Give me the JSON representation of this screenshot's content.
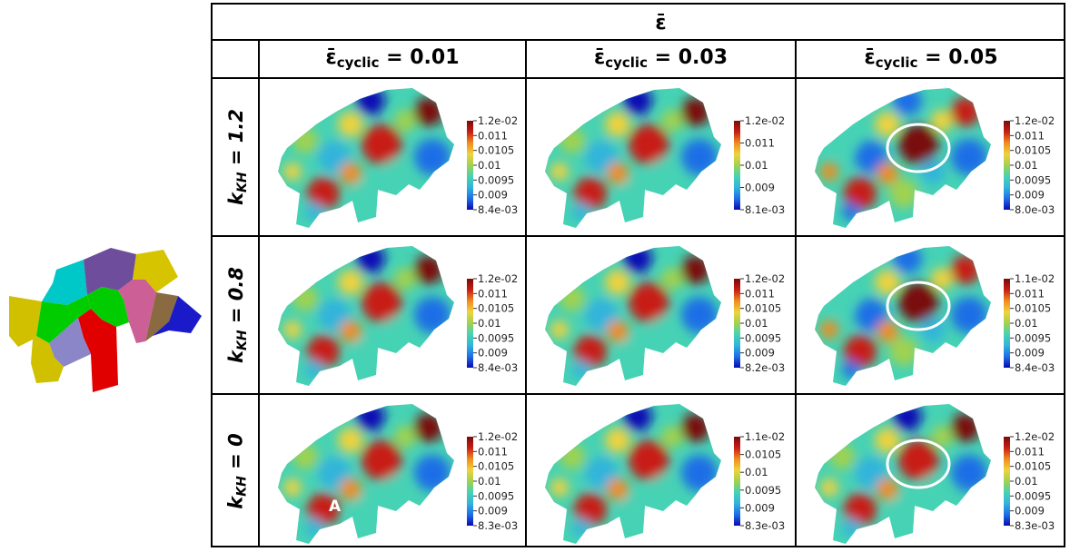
{
  "header": {
    "top_symbol": "ε̄",
    "columns": [
      {
        "prefix": "ε̄",
        "sub": "cyclic",
        "value": " = 0.01"
      },
      {
        "prefix": "ε̄",
        "sub": "cyclic",
        "value": " = 0.03"
      },
      {
        "prefix": "ε̄",
        "sub": "cyclic",
        "value": " = 0.05"
      }
    ],
    "rows": [
      {
        "prefix": "k",
        "sub": "KH",
        "value": " = 1.2"
      },
      {
        "prefix": "k",
        "sub": "KH",
        "value": " = 0.8"
      },
      {
        "prefix": "k",
        "sub": "KH",
        "value": " = 0"
      }
    ]
  },
  "colorbars": [
    [
      {
        "labels": [
          "1.2e-02",
          "0.011",
          "0.0105",
          "0.01",
          "0.0095",
          "0.009",
          "8.4e-03"
        ]
      },
      {
        "labels": [
          "1.2e-02",
          "0.011",
          "0.01",
          "0.009",
          "8.1e-03"
        ]
      },
      {
        "labels": [
          "1.2e-02",
          "0.011",
          "0.0105",
          "0.01",
          "0.0095",
          "0.009",
          "8.0e-03"
        ]
      }
    ],
    [
      {
        "labels": [
          "1.2e-02",
          "0.011",
          "0.0105",
          "0.01",
          "0.0095",
          "0.009",
          "8.4e-03"
        ]
      },
      {
        "labels": [
          "1.2e-02",
          "0.011",
          "0.0105",
          "0.01",
          "0.0095",
          "0.009",
          "8.2e-03"
        ]
      },
      {
        "labels": [
          "1.1e-02",
          "0.011",
          "0.0105",
          "0.01",
          "0.0095",
          "0.009",
          "8.4e-03"
        ]
      }
    ],
    [
      {
        "labels": [
          "1.2e-02",
          "0.011",
          "0.0105",
          "0.01",
          "0.0095",
          "0.009",
          "8.3e-03"
        ]
      },
      {
        "labels": [
          "1.1e-02",
          "0.0105",
          "0.01",
          "0.0095",
          "0.009",
          "8.3e-03"
        ]
      },
      {
        "labels": [
          "1.2e-02",
          "0.011",
          "0.0105",
          "0.01",
          "0.0095",
          "0.009",
          "8.3e-03"
        ]
      }
    ]
  ],
  "highlight_cells": [
    "0-2",
    "1-2",
    "2-2"
  ],
  "marker": {
    "cell": "2-0",
    "text": "A"
  },
  "grain_colors": [
    "#00c8c8",
    "#6e4e9c",
    "#d6c400",
    "#cc5f95",
    "#8a6a40",
    "#1a1ac8",
    "#00cc00",
    "#d0c000",
    "#e00000",
    "#8a86c8",
    "#00cc00"
  ],
  "colormap": [
    "#0a0ab4",
    "#1e6ee6",
    "#32b4dc",
    "#46d2b4",
    "#a0d250",
    "#f0d23c",
    "#f08c1e",
    "#c81e14",
    "#7a0a0a"
  ]
}
